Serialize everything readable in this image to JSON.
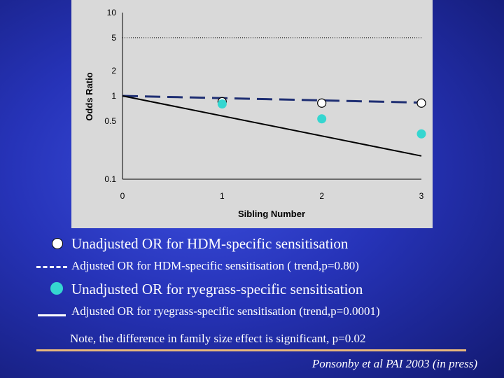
{
  "chart_data": {
    "type": "scatter",
    "xlabel": "Sibling Number",
    "ylabel": "Odds Ratio",
    "yscale": "log",
    "ylim": [
      0.1,
      10
    ],
    "xlim": [
      0,
      3
    ],
    "x_ticks": [
      "0",
      "1",
      "2",
      "3"
    ],
    "y_ticks": [
      "0.1",
      "0.5",
      "1",
      "2",
      "5",
      "10"
    ],
    "reference_line": {
      "y": 5,
      "style": "dotted"
    },
    "background": "#d9d9d9",
    "series": [
      {
        "key": "hdm_unadjusted",
        "kind": "points",
        "marker": "open-circle",
        "color": "#ffffff",
        "points": [
          {
            "x": 1,
            "y": 0.85
          },
          {
            "x": 2,
            "y": 0.82
          },
          {
            "x": 3,
            "y": 0.82
          }
        ]
      },
      {
        "key": "hdm_adjusted",
        "kind": "line",
        "dash": "dashed",
        "color": "#1f2f73",
        "points": [
          {
            "x": 0,
            "y": 1.0
          },
          {
            "x": 3,
            "y": 0.83
          }
        ]
      },
      {
        "key": "ryegrass_unadjusted",
        "kind": "points",
        "marker": "filled-circle",
        "color": "#35d6d0",
        "points": [
          {
            "x": 1,
            "y": 0.8
          },
          {
            "x": 2,
            "y": 0.53
          },
          {
            "x": 3,
            "y": 0.35
          }
        ]
      },
      {
        "key": "ryegrass_adjusted",
        "kind": "line",
        "dash": "solid",
        "color": "#000000",
        "points": [
          {
            "x": 0,
            "y": 1.0
          },
          {
            "x": 3,
            "y": 0.19
          }
        ]
      }
    ]
  },
  "legend": {
    "hdm_unadjusted": "Unadjusted OR for HDM-specific sensitisation",
    "hdm_adjusted": "Adjusted OR for HDM-specific sensitisation ( trend,p=0.80)",
    "ryegrass_unadjusted": "Unadjusted OR for ryegrass-specific sensitisation",
    "ryegrass_adjusted": "Adjusted OR for ryegrass-specific sensitisation (trend,p=0.0001)"
  },
  "note": "Note, the difference in family size effect is significant, p=0.02",
  "citation": "Ponsonby et al PAI 2003 (in press)",
  "colors": {
    "background_blue": "#2633b8",
    "teal": "#35d6d0",
    "dashed_line": "#1f2f73",
    "note_underline": "#e8b77c"
  }
}
